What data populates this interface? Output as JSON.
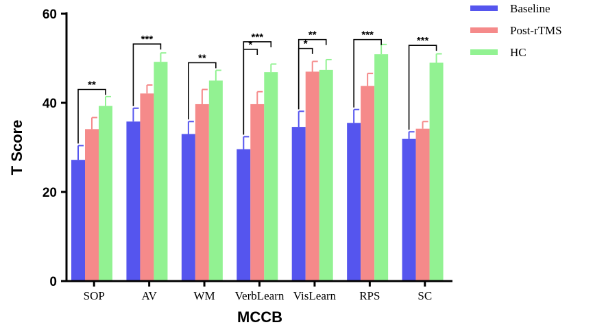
{
  "chart_data": {
    "type": "bar",
    "title": "",
    "xlabel": "MCCB",
    "ylabel": "T Score",
    "ylim": [
      0,
      60
    ],
    "yticks": [
      0,
      20,
      40,
      60
    ],
    "grid": false,
    "legend_position": "top-right",
    "categories": [
      "SOP",
      "AV",
      "WM",
      "VerbLearn",
      "VisLearn",
      "RPS",
      "SC"
    ],
    "series": [
      {
        "name": "Baseline",
        "color": "#5555ee",
        "values": [
          27.2,
          35.8,
          33.0,
          29.6,
          34.6,
          35.5,
          31.9
        ],
        "errors": [
          3.2,
          3.0,
          2.8,
          2.8,
          3.5,
          3.0,
          1.6
        ]
      },
      {
        "name": "Post-rTMS",
        "color": "#f58a8a",
        "values": [
          34.1,
          42.1,
          39.7,
          39.7,
          47.0,
          43.8,
          34.2
        ],
        "errors": [
          2.6,
          1.9,
          3.3,
          2.8,
          2.3,
          2.8,
          1.6
        ]
      },
      {
        "name": "HC",
        "color": "#92f292",
        "values": [
          39.3,
          49.2,
          45.0,
          46.9,
          47.4,
          50.9,
          49.0
        ],
        "errors": [
          2.1,
          2.0,
          2.3,
          1.8,
          2.3,
          2.2,
          2.0
        ]
      }
    ],
    "significance": [
      {
        "category": 0,
        "from": 0,
        "to": 2,
        "label": "**",
        "y": 43.0
      },
      {
        "category": 1,
        "from": 0,
        "to": 2,
        "label": "***",
        "y": 53.2
      },
      {
        "category": 2,
        "from": 0,
        "to": 2,
        "label": "**",
        "y": 49.0
      },
      {
        "category": 3,
        "from": 0,
        "to": 1,
        "label": "*",
        "y": 52.0
      },
      {
        "category": 3,
        "from": 0,
        "to": 2,
        "label": "***",
        "y": 53.7
      },
      {
        "category": 4,
        "from": 0,
        "to": 1,
        "label": "*",
        "y": 52.2
      },
      {
        "category": 4,
        "from": 0,
        "to": 2,
        "label": "**",
        "y": 54.2
      },
      {
        "category": 5,
        "from": 0,
        "to": 2,
        "label": "***",
        "y": 54.2
      },
      {
        "category": 6,
        "from": 0,
        "to": 2,
        "label": "***",
        "y": 52.9
      }
    ]
  }
}
